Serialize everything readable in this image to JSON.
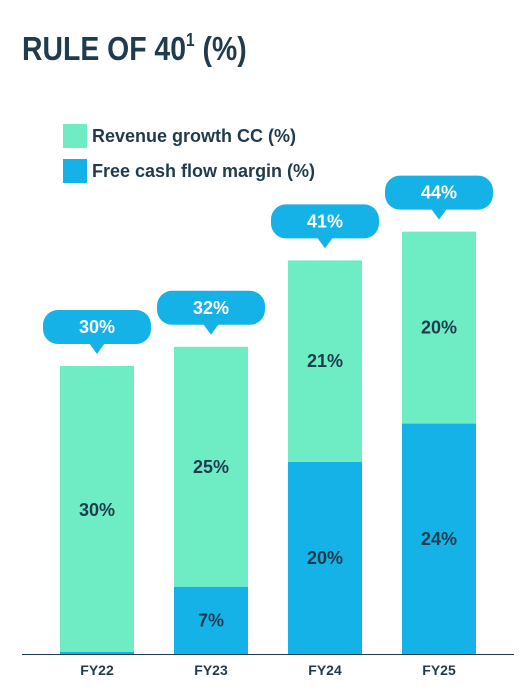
{
  "title": {
    "main": "RULE OF 40",
    "sup": "1",
    "suffix": " (%)"
  },
  "colors": {
    "revenue": "#6EEDC4",
    "fcf": "#14B2E6",
    "bubble": "#14B2E6",
    "text": "#1F3B4D",
    "axis": "#1F3B4D"
  },
  "legend": [
    {
      "label": "Revenue growth CC (%)",
      "color": "#6EEDC4"
    },
    {
      "label": "Free cash flow margin (%)",
      "color": "#14B2E6"
    }
  ],
  "chart_data": {
    "type": "bar",
    "stacked": true,
    "categories": [
      "FY22",
      "FY23",
      "FY24",
      "FY25"
    ],
    "series": [
      {
        "name": "Free cash flow margin (%)",
        "values": [
          0,
          7,
          20,
          24
        ],
        "labels": [
          "",
          "7%",
          "20%",
          "24%"
        ]
      },
      {
        "name": "Revenue growth CC (%)",
        "values": [
          30,
          25,
          21,
          20
        ],
        "labels": [
          "30%",
          "25%",
          "21%",
          "20%"
        ]
      }
    ],
    "totals": [
      30,
      32,
      41,
      44
    ],
    "total_labels": [
      "30%",
      "32%",
      "41%",
      "44%"
    ],
    "ylim": [
      0,
      44
    ],
    "legend_position": "top-left",
    "grid": false
  }
}
